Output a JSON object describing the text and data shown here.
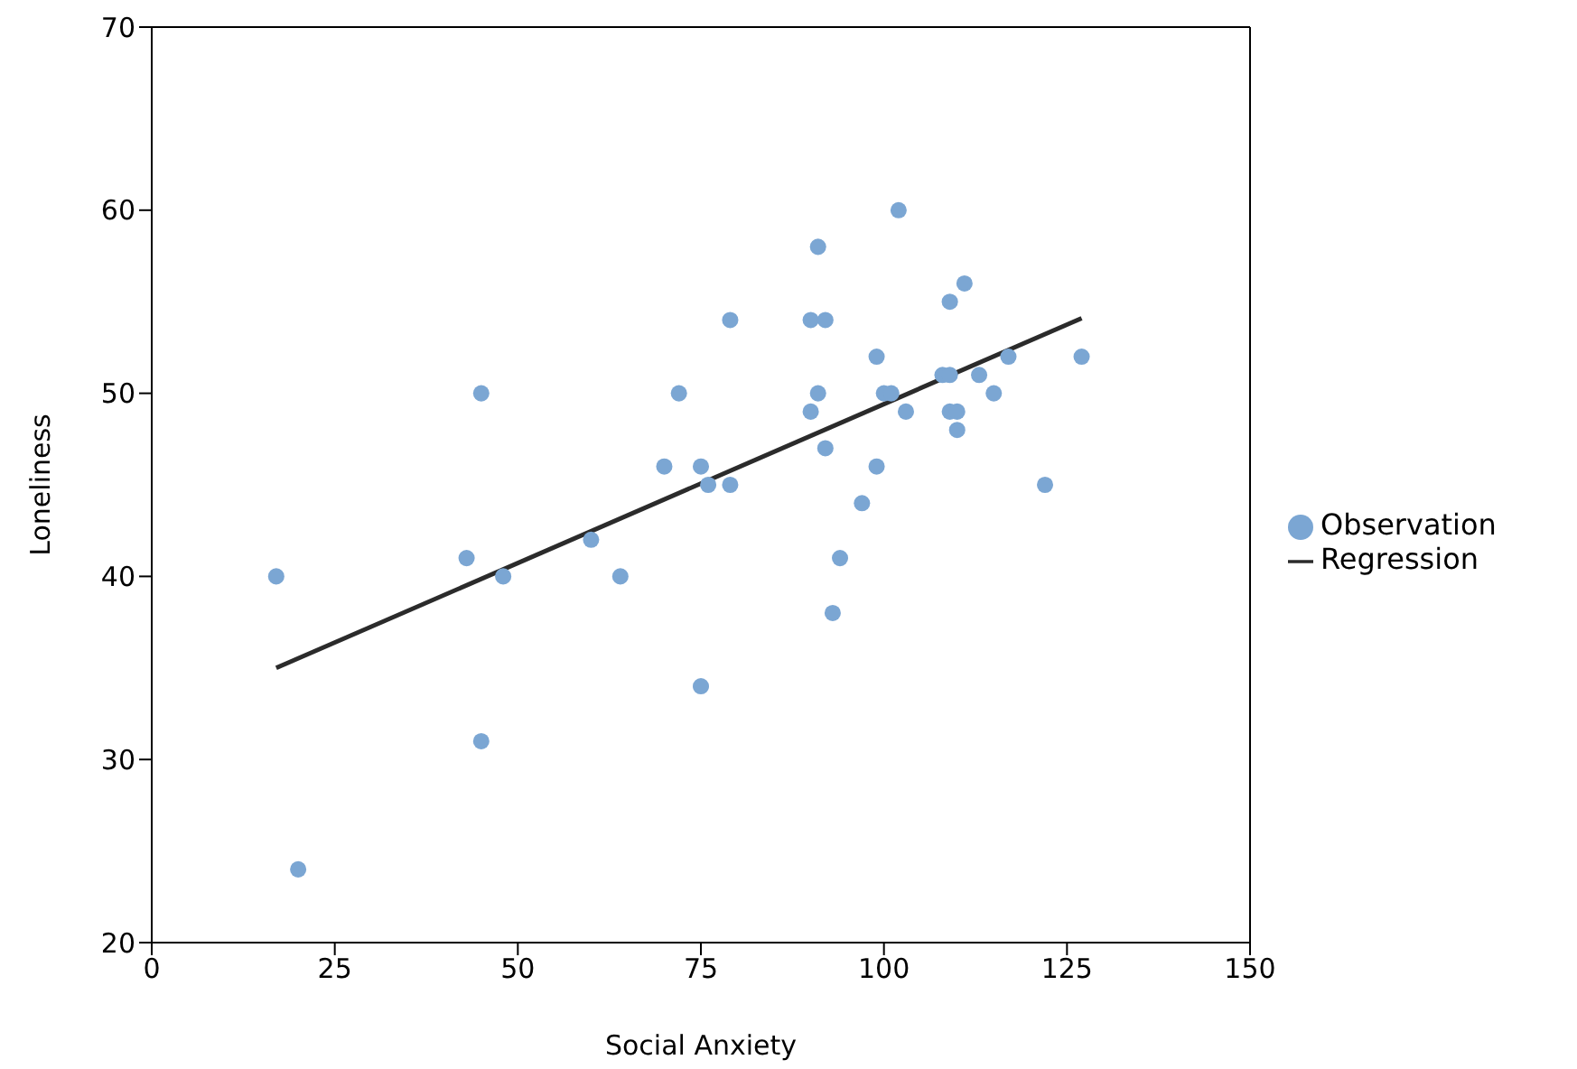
{
  "chart_data": {
    "type": "scatter",
    "xlabel": "Social Anxiety",
    "ylabel": "Loneliness",
    "xlim": [
      0,
      150
    ],
    "xticks": [
      0,
      25,
      50,
      75,
      100,
      125,
      150
    ],
    "ylim": [
      20,
      70
    ],
    "yticks": [
      20,
      30,
      40,
      50,
      60,
      70
    ],
    "grid": false,
    "legend": "right",
    "marker": "circle",
    "series": [
      {
        "name": "Observation",
        "color": "#7ba6d3",
        "x": [
          17,
          20,
          43,
          45,
          45,
          48,
          60,
          64,
          70,
          72,
          75,
          75,
          76,
          79,
          79,
          90,
          90,
          91,
          91,
          92,
          92,
          93,
          94,
          97,
          99,
          99,
          100,
          101,
          102,
          103,
          108,
          109,
          109,
          109,
          110,
          110,
          111,
          113,
          115,
          117,
          122,
          127
        ],
        "values": [
          40,
          24,
          41,
          50,
          31,
          40,
          42,
          40,
          46,
          50,
          46,
          34,
          45,
          54,
          45,
          54,
          49,
          58,
          50,
          54,
          47,
          38,
          41,
          44,
          52,
          46,
          50,
          50,
          60,
          49,
          51,
          55,
          51,
          49,
          49,
          48,
          56,
          51,
          50,
          52,
          45,
          52
        ]
      },
      {
        "name": "Regression",
        "type": "line",
        "color": "#2b2b2b",
        "marker": "none",
        "line_style": "solid",
        "x": [
          17,
          127
        ],
        "values": [
          35,
          54.1
        ]
      }
    ]
  }
}
